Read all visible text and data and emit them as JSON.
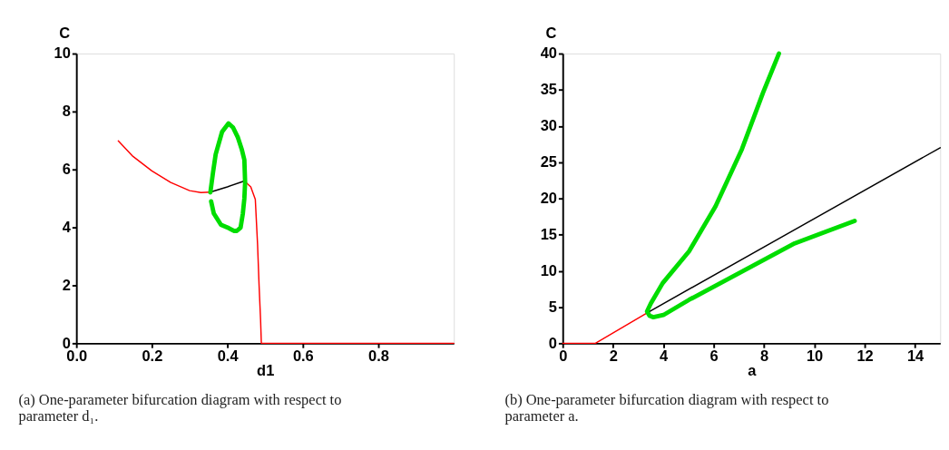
{
  "chart_data": [
    {
      "type": "line",
      "xlabel": "d1",
      "ylabel": "C",
      "xlim": [
        0,
        1
      ],
      "ylim": [
        0,
        10
      ],
      "xticks": [
        {
          "value": 0,
          "label": "0.0"
        },
        0.2,
        0.4,
        0.6,
        0.8
      ],
      "yticks": [
        0,
        2,
        4,
        6,
        8,
        10
      ],
      "grid": false,
      "annotations": [
        "(a) One-parameter bifurcation diagram with respect to parameter d₁."
      ],
      "series": [
        {
          "color": "#ff0000",
          "x": [
            0.111,
            0.15,
            0.2,
            0.25,
            0.3,
            0.33,
            0.355
          ],
          "values": [
            6.99,
            6.45,
            5.95,
            5.55,
            5.27,
            5.2,
            5.22
          ]
        },
        {
          "color": "#000000",
          "x": [
            0.355,
            0.4,
            0.445
          ],
          "values": [
            5.22,
            5.4,
            5.6
          ]
        },
        {
          "color": "#ff0000",
          "x": [
            0.445,
            0.462,
            0.474,
            0.48,
            0.484,
            0.488,
            0.49,
            0.6,
            0.8,
            1.0
          ],
          "values": [
            5.6,
            5.4,
            4.97,
            3.4,
            2.0,
            0.8,
            0,
            0,
            0,
            0
          ]
        },
        {
          "color": "#00dd00",
          "x": [
            0.355,
            0.362,
            0.369,
            0.386,
            0.403,
            0.415,
            0.428,
            0.438,
            0.445,
            0.447,
            0.445,
            0.441,
            0.435,
            0.425,
            0.417,
            0.4,
            0.383,
            0.364,
            0.357
          ],
          "values": [
            5.21,
            5.9,
            6.52,
            7.3,
            7.59,
            7.45,
            7.1,
            6.7,
            6.33,
            5.55,
            5.0,
            4.48,
            3.99,
            3.88,
            3.88,
            4.0,
            4.09,
            4.48,
            4.9
          ]
        }
      ]
    },
    {
      "type": "line",
      "xlabel": "a",
      "ylabel": "C",
      "xlim": [
        0,
        15
      ],
      "ylim": [
        0,
        40
      ],
      "xticks": [
        0,
        2,
        4,
        6,
        8,
        10,
        12,
        14
      ],
      "yticks": [
        0,
        5,
        10,
        15,
        20,
        25,
        30,
        35,
        40
      ],
      "grid": false,
      "annotations": [
        "(b) One-parameter bifurcation diagram with respect to parameter a."
      ],
      "series": [
        {
          "color": "#ff0000",
          "x": [
            0,
            1.3,
            3.4
          ],
          "values": [
            0,
            0,
            4.3
          ]
        },
        {
          "color": "#000000",
          "x": [
            3.4,
            15
          ],
          "values": [
            4.3,
            27.0
          ]
        },
        {
          "color": "#00dd00",
          "x": [
            8.59,
            7.96,
            7.12,
            6.07,
            5.02,
            3.97,
            3.5,
            3.35,
            3.45,
            3.6,
            4.0,
            5.02,
            7.12,
            9.22,
            11.6
          ],
          "values": [
            40,
            34.6,
            26.8,
            18.9,
            12.7,
            8.3,
            5.5,
            4.4,
            3.8,
            3.6,
            3.9,
            6.0,
            9.9,
            13.8,
            16.9
          ]
        }
      ]
    }
  ]
}
